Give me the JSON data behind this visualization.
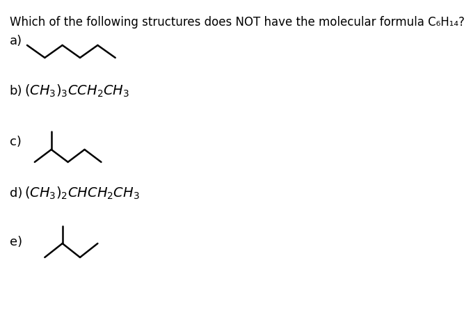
{
  "title": "Which of the following structures does NOT have the molecular formula C₆H₁₄?",
  "title_fontsize": 12,
  "background": "#ffffff",
  "labels": [
    "a)",
    "b)",
    "c)",
    "d)",
    "e)"
  ],
  "label_fontsize": 13,
  "text_b": "(CH₃)₃CCH₂CH₃",
  "text_d": "(CH₃)₂CHCH₂CH₃",
  "line_color": "#000000",
  "line_width": 1.8
}
